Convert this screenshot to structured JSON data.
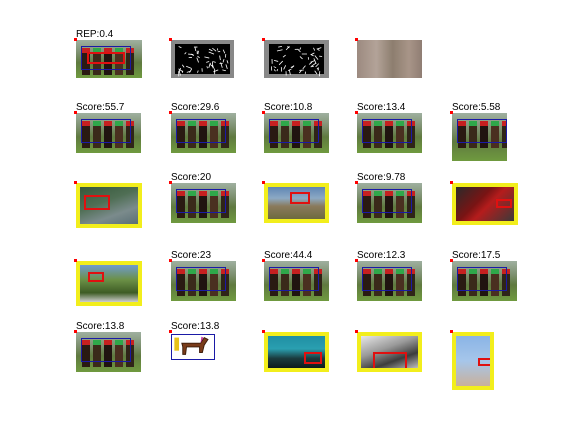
{
  "figure": {
    "rows": [
      {
        "cells": [
          {
            "label": "REP:0.4",
            "style": "race",
            "frame": "none",
            "boxes": [
              "blue",
              "red"
            ]
          },
          {
            "label": "",
            "style": "hog",
            "frame": "none",
            "boxes": []
          },
          {
            "label": "",
            "style": "hog2",
            "frame": "none",
            "boxes": []
          },
          {
            "label": "",
            "style": "blur",
            "frame": "none",
            "boxes": []
          }
        ]
      },
      {
        "cells": [
          {
            "label": "Score:55.7",
            "style": "race",
            "frame": "none",
            "boxes": [
              "blue"
            ]
          },
          {
            "label": "Score:29.6",
            "style": "race",
            "frame": "none",
            "boxes": [
              "blue"
            ]
          },
          {
            "label": "Score:10.8",
            "style": "race",
            "frame": "none",
            "boxes": [
              "blue"
            ]
          },
          {
            "label": "Score:13.4",
            "style": "race",
            "frame": "none",
            "boxes": [
              "blue"
            ]
          },
          {
            "label": "Score:5.58",
            "style": "race",
            "frame": "none",
            "boxes": [
              "blue"
            ]
          }
        ]
      },
      {
        "cells": [
          {
            "label": "",
            "style": "bike",
            "frame": "yellow",
            "boxes": [
              "red"
            ]
          },
          {
            "label": "Score:20",
            "style": "race",
            "frame": "none",
            "boxes": [
              "blue"
            ]
          },
          {
            "label": "",
            "style": "trail",
            "frame": "yellow",
            "boxes": [
              "red"
            ]
          },
          {
            "label": "Score:9.78",
            "style": "race",
            "frame": "none",
            "boxes": [
              "blue"
            ]
          },
          {
            "label": "",
            "style": "moto",
            "frame": "yellow",
            "boxes": [
              "red"
            ]
          }
        ]
      },
      {
        "cells": [
          {
            "label": "",
            "style": "field",
            "frame": "yellow",
            "boxes": [
              "red"
            ]
          },
          {
            "label": "Score:23",
            "style": "race",
            "frame": "none",
            "boxes": [
              "blue"
            ]
          },
          {
            "label": "Score:44.4",
            "style": "race",
            "frame": "none",
            "boxes": [
              "blue"
            ]
          },
          {
            "label": "Score:12.3",
            "style": "race",
            "frame": "none",
            "boxes": [
              "blue"
            ]
          },
          {
            "label": "Score:17.5",
            "style": "race",
            "frame": "none",
            "boxes": [
              "blue"
            ]
          }
        ]
      },
      {
        "cells": [
          {
            "label": "Score:13.8",
            "style": "race",
            "frame": "none",
            "boxes": [
              "blue"
            ]
          },
          {
            "label": "Score:13.8",
            "style": "drawing",
            "frame": "none",
            "boxes": [
              "blue"
            ]
          },
          {
            "label": "",
            "style": "room",
            "frame": "yellow",
            "boxes": [
              "red"
            ]
          },
          {
            "label": "",
            "style": "bw",
            "frame": "yellow",
            "boxes": [
              "red"
            ]
          },
          {
            "label": "",
            "style": "branch",
            "frame": "yellow",
            "boxes": [
              "red"
            ]
          }
        ]
      }
    ]
  },
  "colors": {
    "frame_yellow": "#f2ee1c",
    "box_blue": "#1a1aa6",
    "box_red": "#e01010",
    "marker_red": "#ff0000"
  }
}
